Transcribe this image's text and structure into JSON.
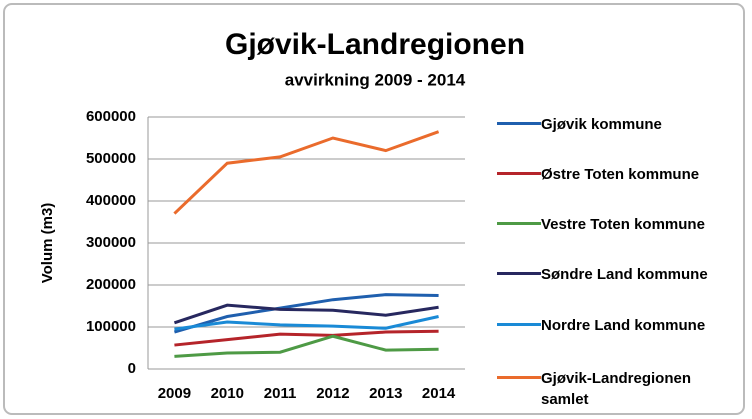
{
  "chart_data": {
    "type": "line",
    "title": "Gjøvik-Landregionen",
    "subtitle": "avvirkning 2009 - 2014",
    "y_label": "Volum (m3)",
    "categories": [
      "2009",
      "2010",
      "2011",
      "2012",
      "2013",
      "2014"
    ],
    "series": [
      {
        "name": "Gjøvik kommune",
        "color": "#1f5fae",
        "values": [
          88000,
          125000,
          145000,
          165000,
          177000,
          175000
        ]
      },
      {
        "name": "Østre Toten kommune",
        "color": "#b5242a",
        "values": [
          57000,
          70000,
          83000,
          80000,
          88000,
          90000
        ]
      },
      {
        "name": "Vestre Toten kommune",
        "color": "#4e9a45",
        "values": [
          30000,
          38000,
          40000,
          78000,
          45000,
          47000
        ]
      },
      {
        "name": "Søndre Land kommune",
        "color": "#27285f",
        "values": [
          110000,
          152000,
          142000,
          140000,
          128000,
          147000
        ]
      },
      {
        "name": "Nordre Land kommune",
        "color": "#1a8ad6",
        "values": [
          95000,
          112000,
          105000,
          102000,
          97000,
          125000
        ]
      },
      {
        "name": "Gjøvik-Landregionen samlet",
        "color": "#ea6b2c",
        "values": [
          370000,
          490000,
          505000,
          550000,
          520000,
          565000
        ]
      }
    ],
    "ylim": [
      0,
      600000
    ],
    "yticks": [
      0,
      100000,
      200000,
      300000,
      400000,
      500000,
      600000
    ],
    "grid": true
  }
}
